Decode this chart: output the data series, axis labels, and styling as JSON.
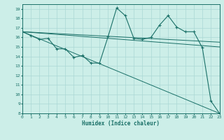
{
  "xlabel": "Humidex (Indice chaleur)",
  "bg_color": "#cceee8",
  "grid_color": "#aad8d4",
  "line_color": "#1a7068",
  "xlim": [
    0,
    23
  ],
  "ylim": [
    8,
    19.5
  ],
  "yticks": [
    8,
    9,
    10,
    11,
    12,
    13,
    14,
    15,
    16,
    17,
    18,
    19
  ],
  "xticks": [
    0,
    1,
    2,
    3,
    4,
    5,
    6,
    7,
    8,
    9,
    10,
    11,
    12,
    13,
    14,
    15,
    16,
    17,
    18,
    19,
    20,
    21,
    22,
    23
  ],
  "main_x": [
    0,
    1,
    2,
    3,
    4,
    5,
    6,
    7,
    8,
    9,
    10,
    11,
    12,
    13,
    14,
    15,
    16,
    17,
    18,
    19,
    20,
    21,
    22,
    23
  ],
  "main_y": [
    16.6,
    16.2,
    15.8,
    15.9,
    14.8,
    14.8,
    13.9,
    14.1,
    13.3,
    13.3,
    16.1,
    19.1,
    18.3,
    15.9,
    15.8,
    16.0,
    17.3,
    18.3,
    17.1,
    16.6,
    16.6,
    14.9,
    9.3,
    8.0
  ],
  "trend1_x": [
    0,
    23
  ],
  "trend1_y": [
    16.6,
    15.0
  ],
  "trend2_x": [
    0,
    23
  ],
  "trend2_y": [
    16.6,
    15.5
  ],
  "trend3_x": [
    0,
    23
  ],
  "trend3_y": [
    16.6,
    8.0
  ],
  "dpi": 100,
  "figsize": [
    3.2,
    2.0
  ]
}
